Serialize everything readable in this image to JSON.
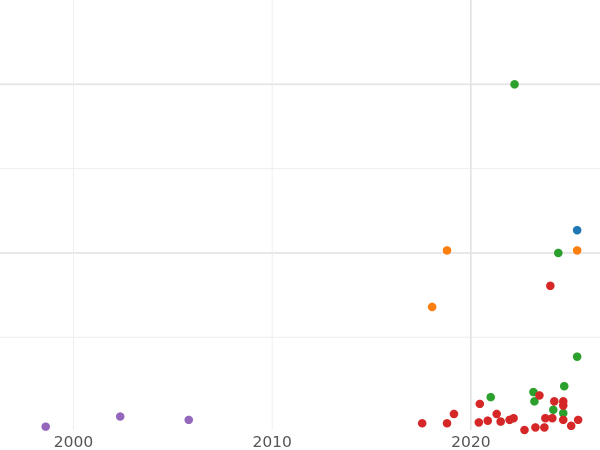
{
  "chart_data": {
    "type": "scatter",
    "title": "",
    "xlabel": "",
    "ylabel": "",
    "xlim": [
      1996.3,
      2026.5
    ],
    "ylim": [
      -0.1,
      5.0
    ],
    "grid": true,
    "x_ticks": [
      2000,
      2010,
      2020
    ],
    "x_tick_labels": [
      "2000",
      "2010",
      "2020"
    ],
    "y_gridlines": [
      1,
      2,
      3,
      4
    ],
    "colors": {
      "blue": "#1f77b4",
      "orange": "#ff7f0e",
      "green": "#2ca02c",
      "red": "#d62728",
      "purple": "#9467bd"
    },
    "series": [
      {
        "color": "#1f77b4",
        "points": [
          {
            "x": 2025.35,
            "y": 2.27
          }
        ]
      },
      {
        "color": "#ff7f0e",
        "points": [
          {
            "x": 2018.8,
            "y": 2.03
          },
          {
            "x": 2018.05,
            "y": 1.36
          },
          {
            "x": 2025.35,
            "y": 2.03
          }
        ]
      },
      {
        "color": "#2ca02c",
        "points": [
          {
            "x": 2022.2,
            "y": 4.0
          },
          {
            "x": 2024.4,
            "y": 2.0
          },
          {
            "x": 2025.35,
            "y": 0.77
          },
          {
            "x": 2024.7,
            "y": 0.42
          },
          {
            "x": 2023.15,
            "y": 0.35
          },
          {
            "x": 2021.0,
            "y": 0.29
          },
          {
            "x": 2023.2,
            "y": 0.24
          },
          {
            "x": 2024.15,
            "y": 0.14
          },
          {
            "x": 2024.65,
            "y": 0.1
          }
        ]
      },
      {
        "color": "#d62728",
        "points": [
          {
            "x": 2024.0,
            "y": 1.61
          },
          {
            "x": 2023.45,
            "y": 0.31
          },
          {
            "x": 2024.2,
            "y": 0.24
          },
          {
            "x": 2024.65,
            "y": 0.24
          },
          {
            "x": 2024.65,
            "y": 0.19
          },
          {
            "x": 2020.45,
            "y": 0.21
          },
          {
            "x": 2019.15,
            "y": 0.09
          },
          {
            "x": 2021.3,
            "y": 0.09
          },
          {
            "x": 2022.15,
            "y": 0.04
          },
          {
            "x": 2021.95,
            "y": 0.02
          },
          {
            "x": 2020.85,
            "y": 0.01
          },
          {
            "x": 2021.5,
            "y": 0.0
          },
          {
            "x": 2020.4,
            "y": -0.01
          },
          {
            "x": 2017.55,
            "y": -0.02
          },
          {
            "x": 2018.8,
            "y": -0.02
          },
          {
            "x": 2023.75,
            "y": 0.04
          },
          {
            "x": 2024.1,
            "y": 0.04
          },
          {
            "x": 2024.65,
            "y": 0.02
          },
          {
            "x": 2025.4,
            "y": 0.02
          },
          {
            "x": 2023.25,
            "y": -0.07
          },
          {
            "x": 2023.7,
            "y": -0.07
          },
          {
            "x": 2025.05,
            "y": -0.05
          },
          {
            "x": 2022.7,
            "y": -0.1
          }
        ]
      },
      {
        "color": "#9467bd",
        "points": [
          {
            "x": 1998.6,
            "y": -0.06
          },
          {
            "x": 2002.35,
            "y": 0.06
          },
          {
            "x": 2005.8,
            "y": 0.02
          }
        ]
      }
    ]
  }
}
